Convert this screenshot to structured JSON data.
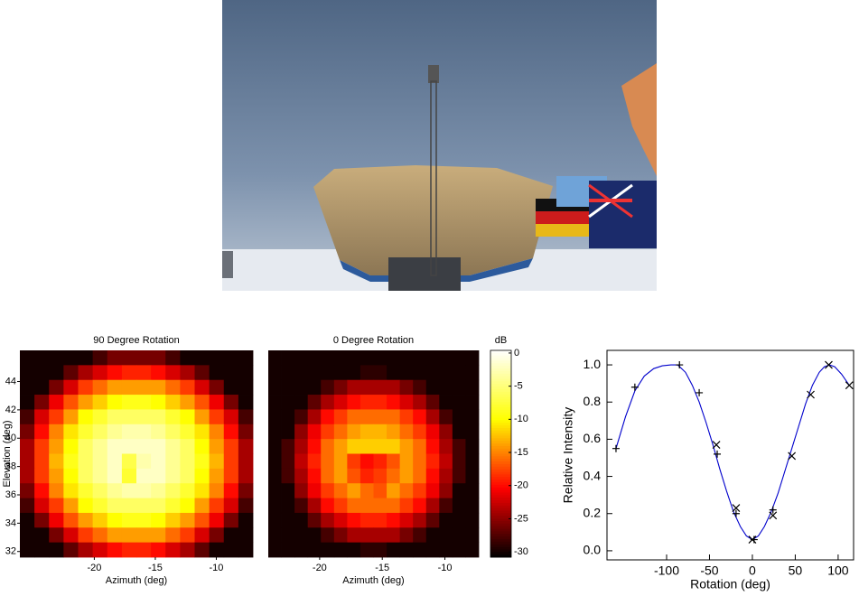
{
  "chart_data": [
    {
      "type": "heatmap",
      "title": "90 Degree Rotation",
      "xlabel": "Azimuth (deg)",
      "ylabel": "Elevation (deg)",
      "xlim": [
        -26.1,
        -7.0
      ],
      "ylim": [
        31.6,
        46.2
      ],
      "xticks": [
        -20,
        -15,
        -10
      ],
      "yticks": [
        32,
        34,
        36,
        38,
        40,
        42,
        44
      ],
      "zlim": [
        -30.8,
        0.4
      ],
      "z": [
        [
          -30,
          -30,
          -30,
          -30,
          -30,
          -28,
          -26,
          -26,
          -26,
          -26,
          -28,
          -30,
          -30,
          -30,
          -30,
          -30
        ],
        [
          -30,
          -30,
          -30,
          -27,
          -24,
          -22,
          -20,
          -19,
          -19,
          -20,
          -22,
          -24,
          -27,
          -30,
          -30,
          -30
        ],
        [
          -30,
          -30,
          -26,
          -22,
          -18,
          -16,
          -14,
          -14,
          -14,
          -14,
          -16,
          -18,
          -22,
          -26,
          -30,
          -30
        ],
        [
          -30,
          -26,
          -21,
          -17,
          -14,
          -12,
          -10,
          -9,
          -9,
          -10,
          -12,
          -14,
          -17,
          -21,
          -26,
          -30
        ],
        [
          -28,
          -22,
          -18,
          -14,
          -10,
          -8,
          -6,
          -6,
          -6,
          -6,
          -8,
          -10,
          -14,
          -18,
          -22,
          -28
        ],
        [
          -26,
          -20,
          -15,
          -11,
          -8,
          -6,
          -4,
          -3,
          -3,
          -4,
          -6,
          -8,
          -11,
          -15,
          -20,
          -26
        ],
        [
          -24,
          -18,
          -14,
          -10,
          -6,
          -4,
          -2,
          -2,
          -2,
          -2,
          -4,
          -6,
          -10,
          -14,
          -18,
          -24
        ],
        [
          -24,
          -18,
          -13,
          -9,
          -6,
          -4,
          -2,
          -7,
          -3,
          -2,
          -4,
          -6,
          -9,
          -13,
          -18,
          -24
        ],
        [
          -24,
          -18,
          -14,
          -10,
          -6,
          -4,
          -2,
          -8,
          -2,
          -2,
          -4,
          -6,
          -10,
          -14,
          -18,
          -24
        ],
        [
          -26,
          -20,
          -15,
          -11,
          -8,
          -6,
          -4,
          -3,
          -3,
          -4,
          -6,
          -8,
          -11,
          -15,
          -20,
          -26
        ],
        [
          -28,
          -22,
          -18,
          -14,
          -10,
          -8,
          -6,
          -6,
          -6,
          -6,
          -8,
          -10,
          -14,
          -18,
          -22,
          -28
        ],
        [
          -30,
          -26,
          -21,
          -17,
          -14,
          -12,
          -10,
          -9,
          -9,
          -10,
          -12,
          -14,
          -17,
          -21,
          -26,
          -30
        ],
        [
          -30,
          -30,
          -26,
          -22,
          -18,
          -16,
          -14,
          -14,
          -14,
          -14,
          -16,
          -18,
          -22,
          -26,
          -30,
          -30
        ],
        [
          -30,
          -30,
          -30,
          -27,
          -24,
          -22,
          -20,
          -19,
          -19,
          -20,
          -22,
          -24,
          -27,
          -30,
          -30,
          -30
        ]
      ]
    },
    {
      "type": "heatmap",
      "title": "0 Degree Rotation",
      "xlabel": "Azimuth (deg)",
      "xlim": [
        -24.1,
        -7.3
      ],
      "xticks": [
        -20,
        -15,
        -10
      ],
      "zlim": [
        -30.8,
        0.4
      ],
      "colorbar": {
        "label": "dB",
        "ticks": [
          0,
          -5,
          -10,
          -15,
          -20,
          -25,
          -30
        ]
      },
      "z": [
        [
          -30,
          -30,
          -30,
          -30,
          -30,
          -30,
          -30,
          -30,
          -30,
          -30,
          -30,
          -30,
          -30,
          -30,
          -30,
          -30
        ],
        [
          -30,
          -30,
          -30,
          -30,
          -30,
          -30,
          -30,
          -29,
          -29,
          -30,
          -30,
          -30,
          -30,
          -30,
          -30,
          -30
        ],
        [
          -30,
          -30,
          -30,
          -30,
          -28,
          -26,
          -24,
          -24,
          -24,
          -24,
          -26,
          -28,
          -30,
          -30,
          -30,
          -30
        ],
        [
          -30,
          -30,
          -30,
          -27,
          -24,
          -22,
          -20,
          -19,
          -19,
          -20,
          -22,
          -24,
          -27,
          -30,
          -30,
          -30
        ],
        [
          -30,
          -30,
          -28,
          -24,
          -20,
          -18,
          -16,
          -16,
          -16,
          -16,
          -18,
          -20,
          -24,
          -28,
          -30,
          -30
        ],
        [
          -30,
          -30,
          -25,
          -21,
          -18,
          -16,
          -14,
          -13,
          -13,
          -14,
          -16,
          -18,
          -21,
          -25,
          -30,
          -30
        ],
        [
          -30,
          -28,
          -24,
          -20,
          -16,
          -14,
          -12,
          -12,
          -12,
          -12,
          -14,
          -16,
          -20,
          -24,
          -28,
          -30
        ],
        [
          -30,
          -28,
          -23,
          -19,
          -16,
          -14,
          -18,
          -20,
          -19,
          -17,
          -14,
          -16,
          -19,
          -23,
          -28,
          -30
        ],
        [
          -30,
          -28,
          -24,
          -20,
          -16,
          -14,
          -17,
          -19,
          -18,
          -16,
          -14,
          -16,
          -20,
          -24,
          -28,
          -30
        ],
        [
          -30,
          -30,
          -25,
          -21,
          -18,
          -16,
          -14,
          -16,
          -17,
          -14,
          -16,
          -18,
          -21,
          -25,
          -30,
          -30
        ],
        [
          -30,
          -30,
          -28,
          -24,
          -20,
          -18,
          -16,
          -16,
          -16,
          -16,
          -18,
          -20,
          -24,
          -28,
          -30,
          -30
        ],
        [
          -30,
          -30,
          -30,
          -27,
          -24,
          -22,
          -20,
          -19,
          -19,
          -20,
          -22,
          -24,
          -27,
          -30,
          -30,
          -30
        ],
        [
          -30,
          -30,
          -30,
          -30,
          -28,
          -26,
          -24,
          -24,
          -24,
          -24,
          -26,
          -28,
          -30,
          -30,
          -30,
          -30
        ],
        [
          -30,
          -30,
          -30,
          -30,
          -30,
          -30,
          -30,
          -29,
          -29,
          -30,
          -30,
          -30,
          -30,
          -30,
          -30,
          -30
        ]
      ]
    },
    {
      "type": "line",
      "xlabel": "Rotation (deg)",
      "ylabel": "Relative Intensity",
      "xlim": [
        -169.5,
        118
      ],
      "ylim": [
        -0.049,
        1.078
      ],
      "xticks": [
        -100,
        -50,
        0,
        50,
        100
      ],
      "yticks": [
        {
          "value": 0,
          "label": "0.0"
        },
        0.2,
        0.4,
        0.6,
        0.8,
        {
          "value": 1,
          "label": "1.0"
        }
      ],
      "series": [
        {
          "color": "#0000cc",
          "style": "line",
          "x": [
            -159,
            -148,
            -137,
            -126,
            -115,
            -105,
            -95,
            -87,
            -78,
            -70,
            -62,
            -54,
            -46,
            -38,
            -30,
            -22,
            -14,
            -7,
            0,
            7,
            14,
            22,
            30,
            38,
            46,
            54,
            62,
            70,
            78,
            84,
            90,
            96,
            104,
            113
          ],
          "values": [
            0.55,
            0.72,
            0.86,
            0.94,
            0.98,
            0.995,
            1.0,
            1.0,
            0.96,
            0.89,
            0.8,
            0.69,
            0.57,
            0.44,
            0.32,
            0.21,
            0.13,
            0.08,
            0.06,
            0.08,
            0.13,
            0.21,
            0.31,
            0.43,
            0.55,
            0.67,
            0.79,
            0.89,
            0.96,
            0.99,
            1.0,
            0.99,
            0.95,
            0.89
          ]
        },
        {
          "color": "#000000",
          "style": "plus",
          "x": [
            -159,
            -137,
            -85,
            -62,
            -41,
            -19,
            2,
            24
          ],
          "values": [
            0.55,
            0.88,
            1.0,
            0.85,
            0.52,
            0.2,
            0.06,
            0.22
          ]
        },
        {
          "color": "#000000",
          "style": "cross",
          "x": [
            -42,
            -19,
            0,
            24,
            46,
            68,
            89,
            113
          ],
          "values": [
            0.57,
            0.23,
            0.06,
            0.19,
            0.51,
            0.84,
            1.0,
            0.89
          ]
        }
      ]
    }
  ]
}
